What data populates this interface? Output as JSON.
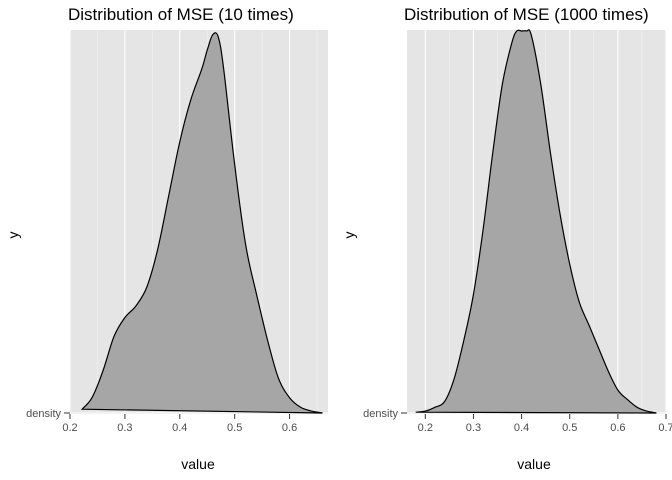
{
  "chart_data": [
    {
      "type": "area",
      "title": "Distribution of MSE (10 times)",
      "xlabel": "value",
      "ylabel": "y",
      "y_category": "density",
      "xlim": [
        0.2,
        0.67
      ],
      "x_ticks": [
        "0.2",
        "0.3",
        "0.4",
        "0.5",
        "0.6"
      ],
      "x_tick_values": [
        0.2,
        0.3,
        0.4,
        0.5,
        0.6
      ],
      "grid": true,
      "fill_color": "#a6a6a6",
      "panel_color": "#e5e5e5",
      "series": [
        {
          "x": [
            0.222,
            0.24,
            0.26,
            0.28,
            0.3,
            0.32,
            0.34,
            0.36,
            0.38,
            0.4,
            0.42,
            0.44,
            0.45,
            0.46,
            0.47,
            0.48,
            0.5,
            0.52,
            0.54,
            0.56,
            0.58,
            0.6,
            0.62,
            0.64,
            0.66
          ],
          "y": [
            0.01,
            0.04,
            0.11,
            0.2,
            0.25,
            0.28,
            0.33,
            0.43,
            0.57,
            0.71,
            0.82,
            0.9,
            0.95,
            0.99,
            0.985,
            0.9,
            0.65,
            0.44,
            0.31,
            0.19,
            0.09,
            0.04,
            0.015,
            0.005,
            0.0
          ]
        }
      ]
    },
    {
      "type": "area",
      "title": "Distribution of MSE (1000 times)",
      "xlabel": "value",
      "ylabel": "y",
      "y_category": "density",
      "xlim": [
        0.162,
        0.7
      ],
      "x_ticks": [
        "0.2",
        "0.3",
        "0.4",
        "0.5",
        "0.6",
        "0.7"
      ],
      "x_tick_values": [
        0.2,
        0.3,
        0.4,
        0.5,
        0.6,
        0.7
      ],
      "grid": true,
      "fill_color": "#a6a6a6",
      "panel_color": "#e5e5e5",
      "series": [
        {
          "x": [
            0.18,
            0.2,
            0.22,
            0.24,
            0.26,
            0.28,
            0.3,
            0.32,
            0.34,
            0.36,
            0.38,
            0.39,
            0.4,
            0.41,
            0.42,
            0.44,
            0.46,
            0.48,
            0.5,
            0.52,
            0.54,
            0.56,
            0.58,
            0.6,
            0.62,
            0.64,
            0.66,
            0.68
          ],
          "y": [
            0.002,
            0.005,
            0.015,
            0.03,
            0.09,
            0.19,
            0.31,
            0.48,
            0.68,
            0.86,
            0.97,
            1.0,
            1.0,
            1.0,
            0.99,
            0.86,
            0.68,
            0.52,
            0.39,
            0.29,
            0.23,
            0.17,
            0.11,
            0.06,
            0.035,
            0.015,
            0.005,
            0.0
          ]
        }
      ]
    }
  ]
}
